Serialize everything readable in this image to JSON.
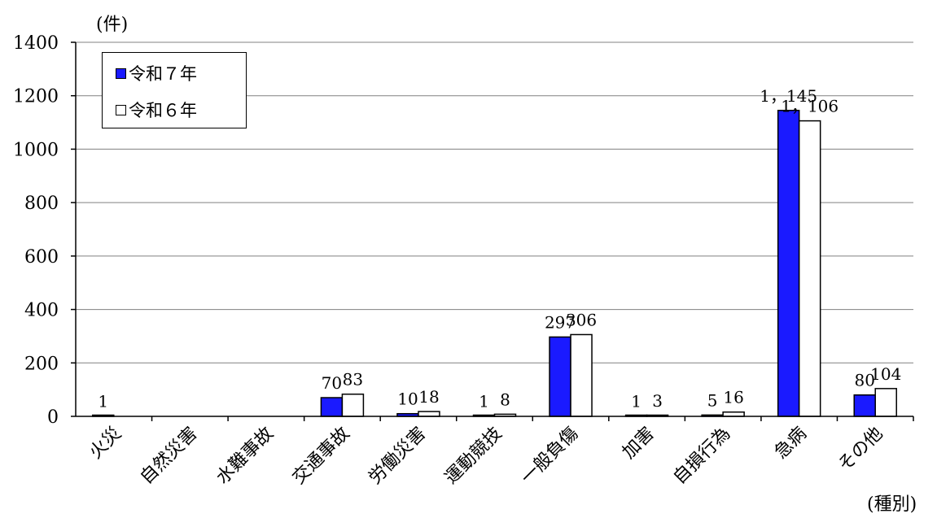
{
  "chart_data": {
    "type": "bar",
    "unit_label": "(件)",
    "xlabel": "(種別)",
    "ylim": [
      0,
      1400
    ],
    "yticks": [
      0,
      200,
      400,
      600,
      800,
      1000,
      1200,
      1400
    ],
    "grid": true,
    "legend_position": "top-left",
    "categories": [
      "火災",
      "自然災害",
      "水難事故",
      "交通事故",
      "労働災害",
      "運動競技",
      "一般負傷",
      "加害",
      "自損行為",
      "急病",
      "その他"
    ],
    "series": [
      {
        "name": "令和７年",
        "color": "#1a1aff",
        "values": [
          1,
          null,
          null,
          70,
          10,
          1,
          297,
          1,
          5,
          1145,
          80
        ],
        "labels": [
          "1",
          "",
          "",
          "70",
          "10",
          "1",
          "297",
          "1",
          "5",
          "1，145",
          "80"
        ]
      },
      {
        "name": "令和６年",
        "color": "#ffffff",
        "values": [
          null,
          null,
          null,
          83,
          18,
          8,
          306,
          3,
          16,
          1106,
          104
        ],
        "labels": [
          "",
          "",
          "",
          "83",
          "18",
          "8",
          "306",
          "3",
          "16",
          "1，106",
          "104"
        ]
      }
    ]
  }
}
